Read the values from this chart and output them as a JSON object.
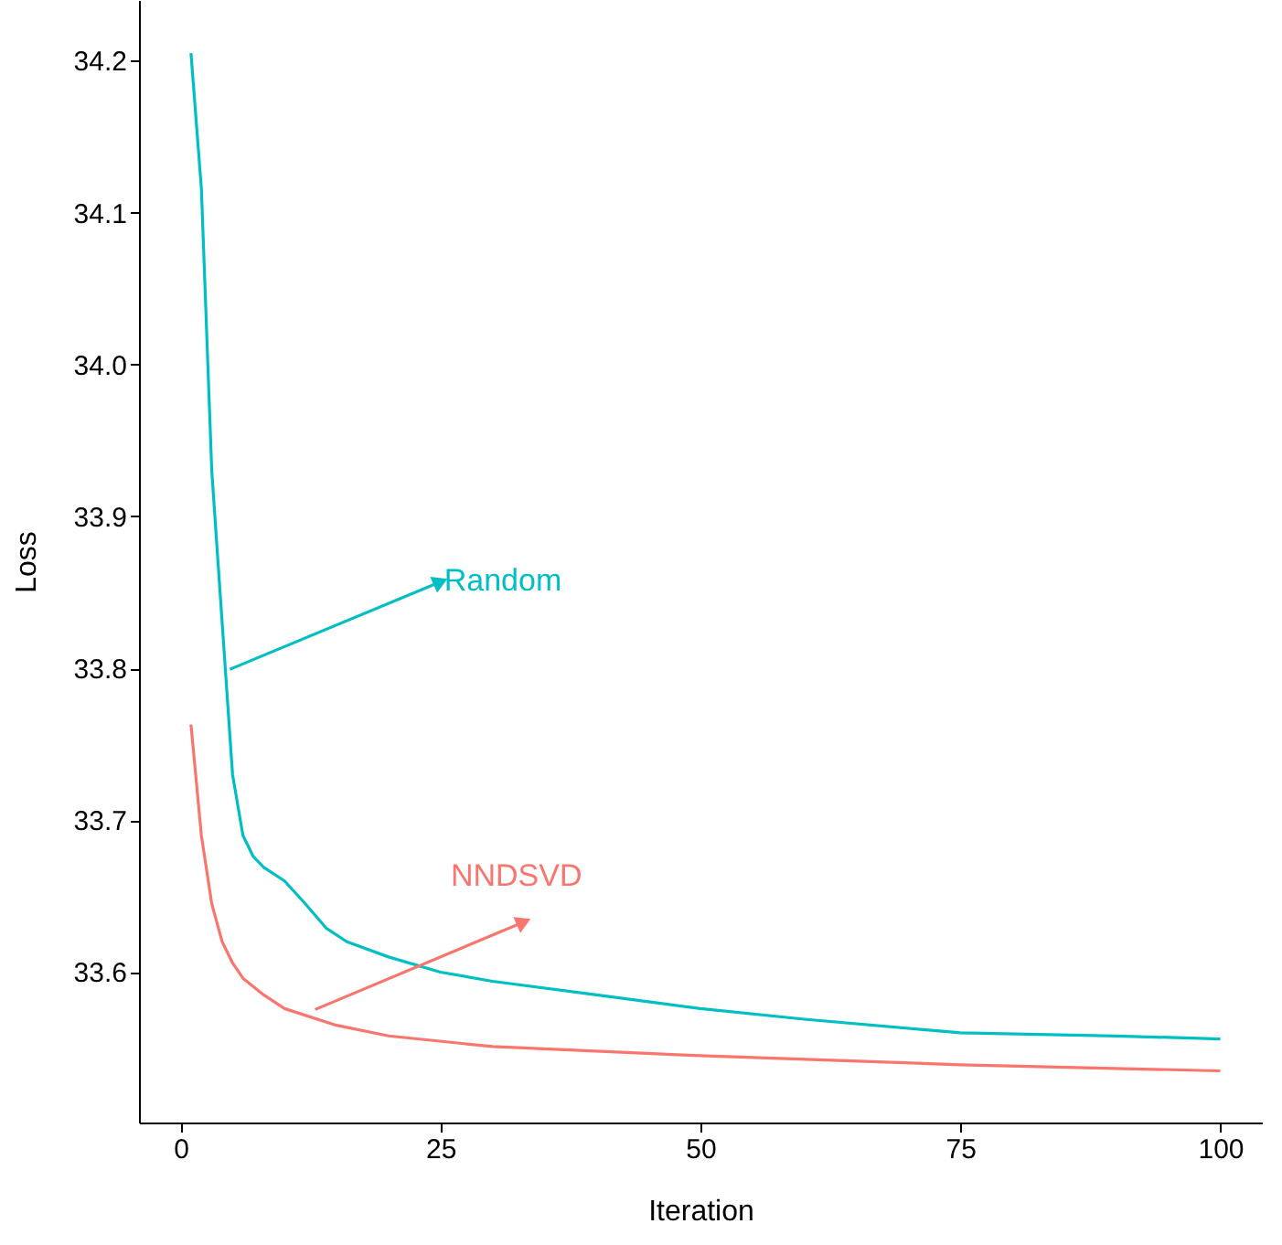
{
  "chart_data": {
    "type": "line",
    "xlabel": "Iteration",
    "ylabel": "Loss",
    "xlim": [
      -4,
      104
    ],
    "xticks": [
      0,
      25,
      50,
      75,
      100
    ],
    "ylim": [
      33.501,
      34.24
    ],
    "yticks": [
      {
        "value": 33.6,
        "label": "33.6"
      },
      {
        "value": 33.7,
        "label": "33.7"
      },
      {
        "value": 33.8,
        "label": "33.8"
      },
      {
        "value": 33.9,
        "label": "33.9"
      },
      {
        "value": 34.0,
        "label": "34.0"
      },
      {
        "value": 34.1,
        "label": "34.1"
      },
      {
        "value": 34.2,
        "label": "34.2"
      }
    ],
    "grid": false,
    "marker": "none",
    "line_style": "solid",
    "series": [
      {
        "color": "#00bfc4",
        "x": [
          1,
          2,
          3,
          4,
          5,
          6,
          7,
          8,
          10,
          12,
          14,
          16,
          20,
          25,
          30,
          40,
          50,
          60,
          75,
          90,
          100
        ],
        "values": [
          34.205,
          34.116,
          33.93,
          33.83,
          33.73,
          33.69,
          33.676,
          33.669,
          33.66,
          33.645,
          33.629,
          33.62,
          33.61,
          33.6,
          33.594,
          33.585,
          33.576,
          33.569,
          33.56,
          33.558,
          33.556
        ]
      },
      {
        "color": "#f8766d",
        "x": [
          1,
          2,
          3,
          4,
          5,
          6,
          8,
          10,
          15,
          20,
          30,
          50,
          75,
          100
        ],
        "values": [
          33.763,
          33.69,
          33.645,
          33.62,
          33.606,
          33.596,
          33.585,
          33.576,
          33.565,
          33.558,
          33.551,
          33.545,
          33.539,
          33.535
        ]
      }
    ],
    "annotations": [
      {
        "text": "Random",
        "x": 25,
        "y": 33.857
      },
      {
        "text": "NNDSVD",
        "x": 33,
        "y": 33.633
      }
    ]
  }
}
